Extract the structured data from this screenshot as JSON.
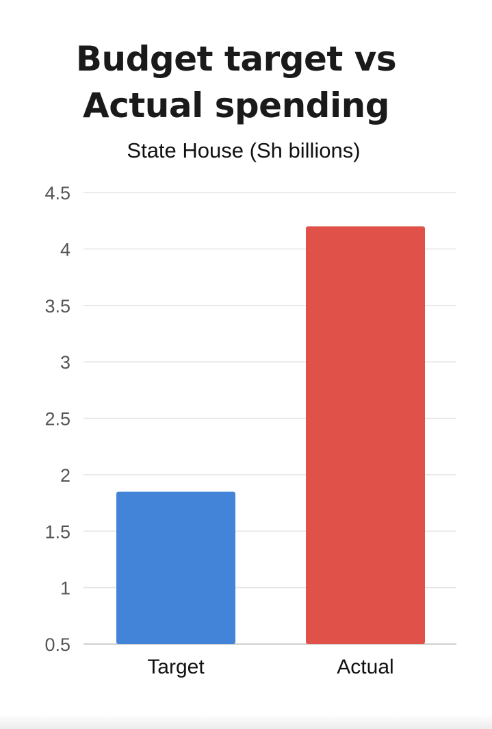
{
  "chart_data": {
    "type": "bar",
    "title": "Budget target vs Actual spending",
    "title_lines": [
      "Budget target vs",
      "Actual spending"
    ],
    "subtitle": "State House (Sh billions)",
    "xlabel": "",
    "ylabel": "",
    "categories": [
      "Target",
      "Actual"
    ],
    "values": [
      1.85,
      4.2
    ],
    "colors": [
      "#4484d8",
      "#e0514a"
    ],
    "ylim": [
      0.5,
      4.5
    ],
    "yticks": [
      "0.5",
      "1",
      "1.5",
      "2",
      "2.5",
      "3",
      "3.5",
      "4",
      "4.5"
    ],
    "grid": true,
    "legend": "none"
  }
}
